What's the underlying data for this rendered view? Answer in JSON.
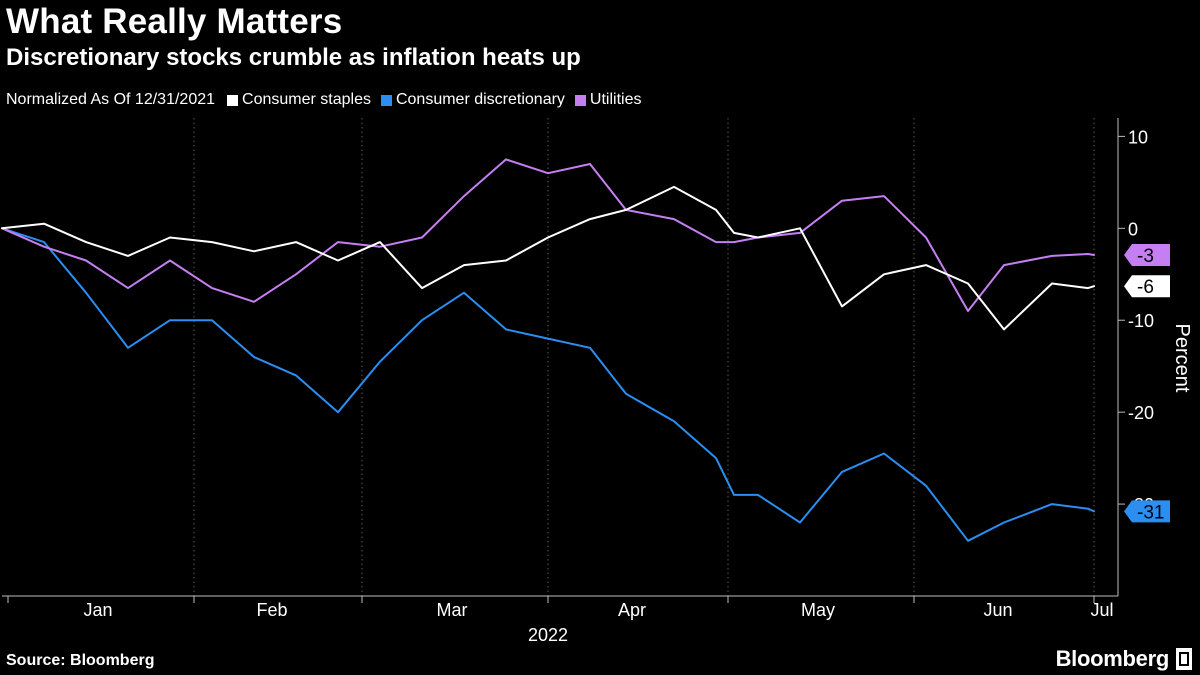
{
  "header": {
    "title": "What Really Matters",
    "subtitle": "Discretionary stocks crumble as inflation heats up"
  },
  "legend": {
    "normalized_note": "Normalized As Of 12/31/2021",
    "items": [
      {
        "label": "Consumer staples",
        "color": "#ffffff"
      },
      {
        "label": "Consumer discretionary",
        "color": "#2b8ef0"
      },
      {
        "label": "Utilities",
        "color": "#c57ff2"
      }
    ]
  },
  "footer": {
    "source": "Source: Bloomberg",
    "brand": "Bloomberg"
  },
  "chart_data": {
    "type": "line",
    "title": "What Really Matters",
    "subtitle": "Discretionary stocks crumble as inflation heats up",
    "xlabel": "2022",
    "ylabel": "Percent",
    "x_range": [
      "2021-12-31",
      "2022-07-05"
    ],
    "ylim": [
      -40,
      12
    ],
    "y_ticks": [
      10,
      0,
      -10,
      -20,
      -30
    ],
    "x_ticks": [
      "Jan",
      "Feb",
      "Mar",
      "Apr",
      "May",
      "Jun",
      "Jul"
    ],
    "x_year_label": "2022",
    "grid": "vertical dotted at month boundaries",
    "legend_position": "top-left",
    "series": [
      {
        "name": "Consumer staples",
        "color": "#ffffff",
        "end_label": "-6",
        "dates": [
          "2021-12-31",
          "2022-01-07",
          "2022-01-14",
          "2022-01-21",
          "2022-01-28",
          "2022-02-04",
          "2022-02-11",
          "2022-02-18",
          "2022-02-25",
          "2022-03-04",
          "2022-03-11",
          "2022-03-18",
          "2022-03-25",
          "2022-04-01",
          "2022-04-08",
          "2022-04-14",
          "2022-04-22",
          "2022-04-29",
          "2022-05-02",
          "2022-05-06",
          "2022-05-13",
          "2022-05-20",
          "2022-05-27",
          "2022-06-03",
          "2022-06-10",
          "2022-06-16",
          "2022-06-24",
          "2022-06-30",
          "2022-07-01"
        ],
        "values": [
          0,
          0.5,
          -1.5,
          -3,
          -1,
          -1.5,
          -2.5,
          -1.5,
          -3.5,
          -1.5,
          -6.5,
          -4,
          -3.5,
          -1,
          1,
          2,
          4.5,
          2,
          -0.5,
          -1,
          0,
          -8.5,
          -5,
          -4,
          -6,
          -11,
          -6,
          -6.5,
          -6.3
        ]
      },
      {
        "name": "Consumer discretionary",
        "color": "#2b8ef0",
        "end_label": "-31",
        "dates": [
          "2021-12-31",
          "2022-01-07",
          "2022-01-14",
          "2022-01-21",
          "2022-01-28",
          "2022-02-04",
          "2022-02-11",
          "2022-02-18",
          "2022-02-25",
          "2022-03-04",
          "2022-03-11",
          "2022-03-18",
          "2022-03-25",
          "2022-04-01",
          "2022-04-08",
          "2022-04-14",
          "2022-04-22",
          "2022-04-29",
          "2022-05-02",
          "2022-05-06",
          "2022-05-13",
          "2022-05-20",
          "2022-05-27",
          "2022-06-03",
          "2022-06-10",
          "2022-06-16",
          "2022-06-24",
          "2022-06-30",
          "2022-07-01"
        ],
        "values": [
          0,
          -1.5,
          -7,
          -13,
          -10,
          -10,
          -14,
          -16,
          -20,
          -14.5,
          -10,
          -7,
          -11,
          -12,
          -13,
          -18,
          -21,
          -25,
          -29,
          -29,
          -32,
          -26.5,
          -24.5,
          -28,
          -34,
          -32,
          -30,
          -30.5,
          -30.8
        ]
      },
      {
        "name": "Utilities",
        "color": "#c57ff2",
        "end_label": "-3",
        "dates": [
          "2021-12-31",
          "2022-01-07",
          "2022-01-14",
          "2022-01-21",
          "2022-01-28",
          "2022-02-04",
          "2022-02-11",
          "2022-02-18",
          "2022-02-25",
          "2022-03-04",
          "2022-03-11",
          "2022-03-18",
          "2022-03-25",
          "2022-04-01",
          "2022-04-08",
          "2022-04-14",
          "2022-04-22",
          "2022-04-29",
          "2022-05-02",
          "2022-05-06",
          "2022-05-13",
          "2022-05-20",
          "2022-05-27",
          "2022-06-03",
          "2022-06-10",
          "2022-06-16",
          "2022-06-24",
          "2022-06-30",
          "2022-07-01"
        ],
        "values": [
          0,
          -2,
          -3.5,
          -6.5,
          -3.5,
          -6.5,
          -8,
          -5,
          -1.5,
          -2,
          -1,
          3.5,
          7.5,
          6,
          7,
          2,
          1,
          -1.5,
          -1.5,
          -1,
          -0.5,
          3,
          3.5,
          -1,
          -9,
          -4,
          -3,
          -2.8,
          -2.9
        ]
      }
    ]
  }
}
